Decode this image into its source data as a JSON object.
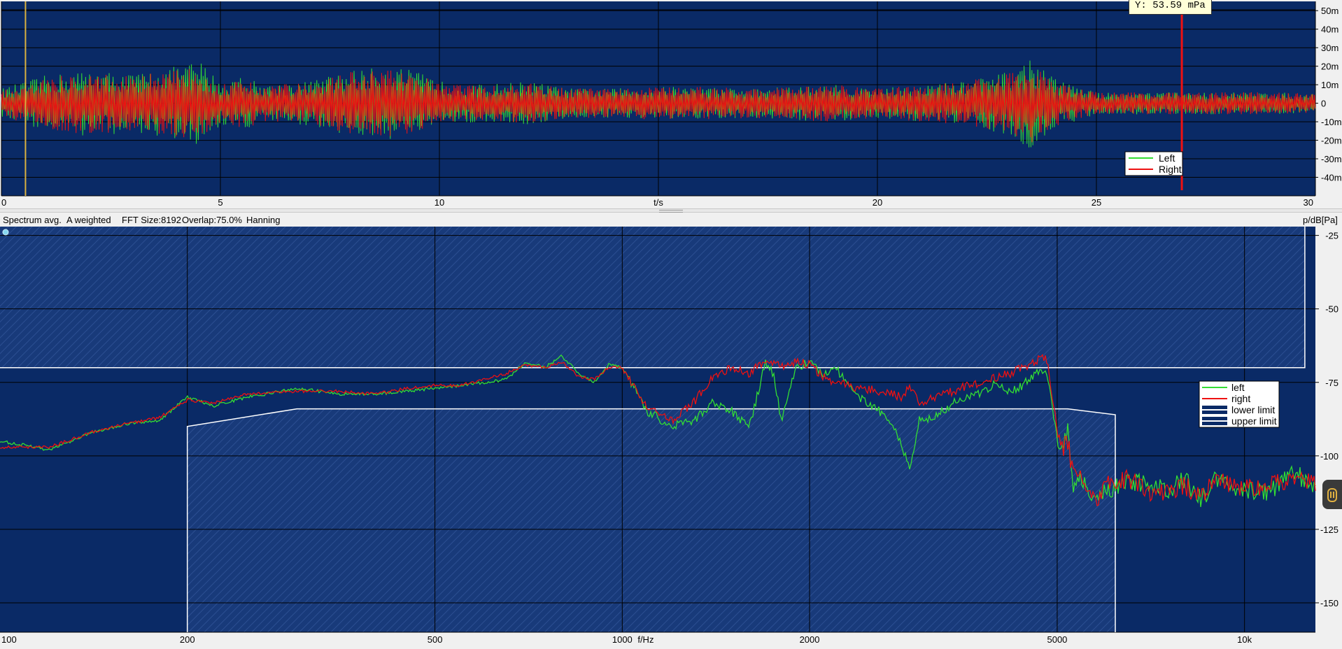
{
  "readout": {
    "text": "Y: 53.59 mPa"
  },
  "info_bar": {
    "mode": "Spectrum avg.",
    "weighting": "A weighted",
    "fft_size": "FFT Size:8192",
    "overlap": "Overlap:75.0%",
    "window": "Hanning",
    "unit": "p/dB[Pa]"
  },
  "colors": {
    "plot_background": "#0a2a66",
    "left_series": "#33dd33",
    "right_series": "#ee1111",
    "limit_line": "#ffffff",
    "cursor": "#d8b040"
  },
  "chart_data": [
    {
      "type": "line",
      "xlabel": "t/s",
      "ylabel": "",
      "xlim": [
        0,
        30
      ],
      "ylim": [
        -50,
        55
      ],
      "x_ticks": [
        "0",
        "5",
        "10",
        "t/s",
        "20",
        "25",
        "30"
      ],
      "x_tick_values": [
        0,
        5,
        10,
        15,
        20,
        25,
        30
      ],
      "y_ticks": [
        "50m",
        "40m",
        "30m",
        "20m",
        "10m",
        "0",
        "-10m",
        "-20m",
        "-30m",
        "-40m"
      ],
      "y_tick_values": [
        50,
        40,
        30,
        20,
        10,
        0,
        -10,
        -20,
        -30,
        -40
      ],
      "grid": true,
      "legend_position": "bottom-right",
      "cursor_x": 0.55,
      "series": [
        {
          "name": "Left",
          "envelope_t": [
            0,
            1,
            2,
            3,
            4,
            4.5,
            5,
            5.5,
            6,
            7,
            8,
            9,
            9.5,
            10,
            11,
            12,
            13,
            14,
            15,
            16,
            17,
            18,
            19,
            20,
            21,
            22,
            23,
            23.5,
            24,
            24.5,
            25,
            26,
            26.9,
            27,
            28,
            29,
            30
          ],
          "envelope_amp": [
            8,
            15,
            18,
            16,
            20,
            24,
            12,
            15,
            10,
            12,
            18,
            20,
            17,
            12,
            10,
            12,
            8,
            8,
            9,
            9,
            8,
            9,
            10,
            8,
            10,
            12,
            17,
            25,
            14,
            10,
            6,
            6,
            6,
            6,
            6,
            6,
            5
          ]
        },
        {
          "name": "Right",
          "envelope_t": [
            0,
            1,
            2,
            3,
            4,
            4.5,
            5,
            5.5,
            6,
            7,
            8,
            9,
            9.5,
            10,
            11,
            12,
            13,
            14,
            15,
            16,
            17,
            18,
            19,
            20,
            21,
            22,
            23,
            23.5,
            24,
            24.5,
            25,
            26,
            26.9,
            27,
            28,
            29,
            30
          ],
          "envelope_amp": [
            7,
            14,
            17,
            15,
            18,
            20,
            11,
            14,
            10,
            11,
            17,
            18,
            16,
            11,
            9,
            11,
            8,
            8,
            9,
            9,
            8,
            9,
            10,
            8,
            10,
            12,
            16,
            22,
            13,
            9,
            6,
            6,
            6,
            6,
            6,
            6,
            5
          ],
          "spike_t": 26.95,
          "spike_peak": 53.59,
          "spike_min": -47
        }
      ]
    },
    {
      "type": "line",
      "xlabel": "f/Hz",
      "ylabel": "p/dB[Pa]",
      "x_scale": "log",
      "xlim": [
        100,
        13000
      ],
      "ylim": [
        -160,
        -22
      ],
      "x_ticks": [
        "100",
        "200",
        "500",
        "1000",
        "2000",
        "5000",
        "10k"
      ],
      "x_tick_values": [
        100,
        200,
        500,
        1000,
        2000,
        5000,
        10000
      ],
      "y_ticks": [
        "-25",
        "-50",
        "-75",
        "-100",
        "-125",
        "-150"
      ],
      "y_tick_values": [
        -25,
        -50,
        -75,
        -100,
        -125,
        -150
      ],
      "grid": true,
      "legend_position": "right",
      "series": [
        {
          "name": "left",
          "x": [
            100,
            120,
            140,
            160,
            180,
            200,
            220,
            250,
            300,
            350,
            400,
            450,
            500,
            550,
            600,
            650,
            700,
            750,
            800,
            850,
            900,
            950,
            1000,
            1100,
            1200,
            1300,
            1400,
            1500,
            1600,
            1700,
            1750,
            1800,
            1900,
            2000,
            2100,
            2200,
            2400,
            2600,
            2700,
            2800,
            2900,
            3000,
            3200,
            3400,
            3600,
            3800,
            4000,
            4200,
            4400,
            4600,
            4800,
            5000,
            5100,
            5200,
            5300,
            5400,
            5600,
            5800,
            6000,
            6500,
            7000,
            7500,
            8000,
            8500,
            9000,
            10000,
            11000,
            12000,
            13000
          ],
          "y": [
            -95,
            -98,
            -92,
            -89,
            -88,
            -80,
            -83,
            -80,
            -77,
            -79,
            -79,
            -78,
            -77,
            -76,
            -75,
            -74,
            -68,
            -70,
            -66,
            -72,
            -75,
            -69,
            -70,
            -85,
            -90,
            -88,
            -82,
            -85,
            -90,
            -68,
            -72,
            -88,
            -70,
            -68,
            -72,
            -70,
            -80,
            -85,
            -88,
            -95,
            -105,
            -88,
            -86,
            -82,
            -80,
            -78,
            -75,
            -78,
            -76,
            -72,
            -70,
            -95,
            -100,
            -90,
            -110,
            -106,
            -112,
            -115,
            -112,
            -108,
            -110,
            -112,
            -108,
            -115,
            -108,
            -112,
            -112,
            -106,
            -110
          ]
        },
        {
          "name": "right",
          "x": [
            100,
            120,
            140,
            160,
            180,
            200,
            220,
            250,
            300,
            350,
            400,
            450,
            500,
            550,
            600,
            650,
            700,
            750,
            800,
            850,
            900,
            950,
            1000,
            1100,
            1200,
            1300,
            1400,
            1500,
            1600,
            1700,
            1750,
            1800,
            1900,
            2000,
            2100,
            2200,
            2400,
            2600,
            2700,
            2800,
            2900,
            3000,
            3200,
            3400,
            3600,
            3800,
            4000,
            4200,
            4400,
            4600,
            4800,
            5000,
            5100,
            5200,
            5300,
            5400,
            5600,
            5800,
            6000,
            6500,
            7000,
            7500,
            8000,
            8500,
            9000,
            10000,
            11000,
            12000,
            13000
          ],
          "y": [
            -97,
            -97,
            -92,
            -89,
            -87,
            -81,
            -82,
            -79,
            -78,
            -78,
            -79,
            -77,
            -76,
            -76,
            -74,
            -72,
            -69,
            -70,
            -68,
            -73,
            -74,
            -70,
            -70,
            -84,
            -88,
            -82,
            -73,
            -70,
            -72,
            -67,
            -68,
            -70,
            -68,
            -69,
            -73,
            -75,
            -77,
            -78,
            -79,
            -80,
            -77,
            -82,
            -80,
            -78,
            -76,
            -75,
            -73,
            -72,
            -70,
            -68,
            -66,
            -90,
            -98,
            -95,
            -106,
            -104,
            -114,
            -116,
            -110,
            -108,
            -112,
            -113,
            -110,
            -114,
            -108,
            -111,
            -110,
            -108,
            -109
          ]
        },
        {
          "name": "lower limit",
          "x": [
            200,
            200,
            300,
            5000,
            5200,
            6200,
            6200
          ],
          "y": [
            -160,
            -90,
            -84,
            -84,
            -84,
            -86,
            -160
          ]
        },
        {
          "name": "upper limit",
          "x": [
            100,
            100,
            12500,
            12500
          ],
          "y": [
            -22,
            -70,
            -70,
            -22
          ]
        }
      ]
    }
  ]
}
